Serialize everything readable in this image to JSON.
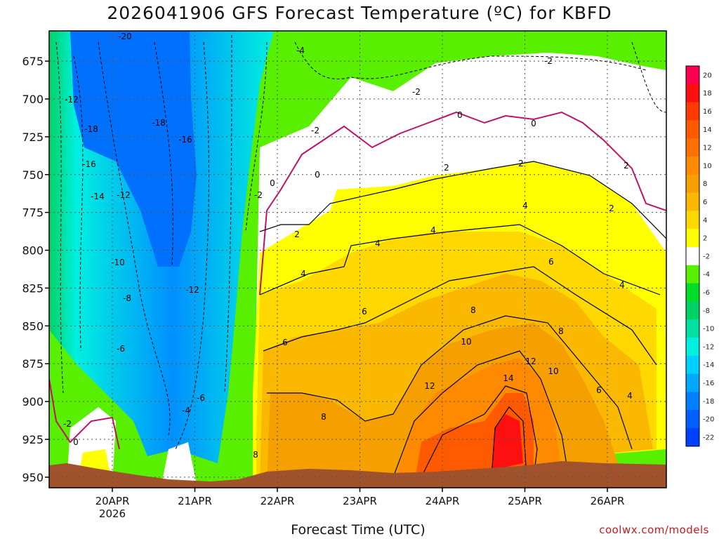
{
  "chart_data": {
    "type": "heatmap",
    "title": "2026041906 GFS Forecast Temperature (ºC) for KBFD",
    "xlabel": "Forecast Time (UTC)",
    "ylabel": "",
    "y_levels": [
      675,
      700,
      725,
      750,
      775,
      800,
      825,
      850,
      875,
      900,
      925,
      950
    ],
    "x_ticks": [
      "20APR",
      "21APR",
      "22APR",
      "23APR",
      "24APR",
      "25APR",
      "26APR"
    ],
    "x_sublabel": "2026",
    "ylim": [
      655,
      957
    ],
    "colorbar": {
      "levels": [
        20,
        18,
        16,
        14,
        12,
        10,
        8,
        6,
        4,
        2,
        -2,
        -4,
        -6,
        -8,
        -10,
        -12,
        -14,
        -16,
        -18,
        -20,
        -22
      ],
      "colors": [
        "#ff0050",
        "#ff1010",
        "#ff3a00",
        "#ff5a00",
        "#ff7000",
        "#ff8a00",
        "#f5a000",
        "#fbb800",
        "#ffd800",
        "#ffff00",
        "#ffffff",
        "#58f000",
        "#00dc28",
        "#00d264",
        "#00e0a0",
        "#00f0e0",
        "#00d0ff",
        "#00a8ff",
        "#0080ff",
        "#0060ff",
        "#0040ff"
      ]
    },
    "contour_labels": [
      "-20",
      "-18",
      "-18",
      "-16",
      "-16",
      "-14",
      "-12",
      "-12",
      "-12",
      "-10",
      "-8",
      "-6",
      "-6",
      "-4",
      "-4",
      "-2",
      "-2",
      "-2",
      "-2",
      "-2",
      "0",
      "0",
      "0",
      "0",
      "0",
      "2",
      "2",
      "2",
      "2",
      "2",
      "4",
      "4",
      "4",
      "4",
      "4",
      "4",
      "6",
      "6",
      "6",
      "6",
      "8",
      "8",
      "8",
      "8",
      "10",
      "10",
      "12",
      "12",
      "14"
    ]
  },
  "credit": "coolwx.com/models"
}
